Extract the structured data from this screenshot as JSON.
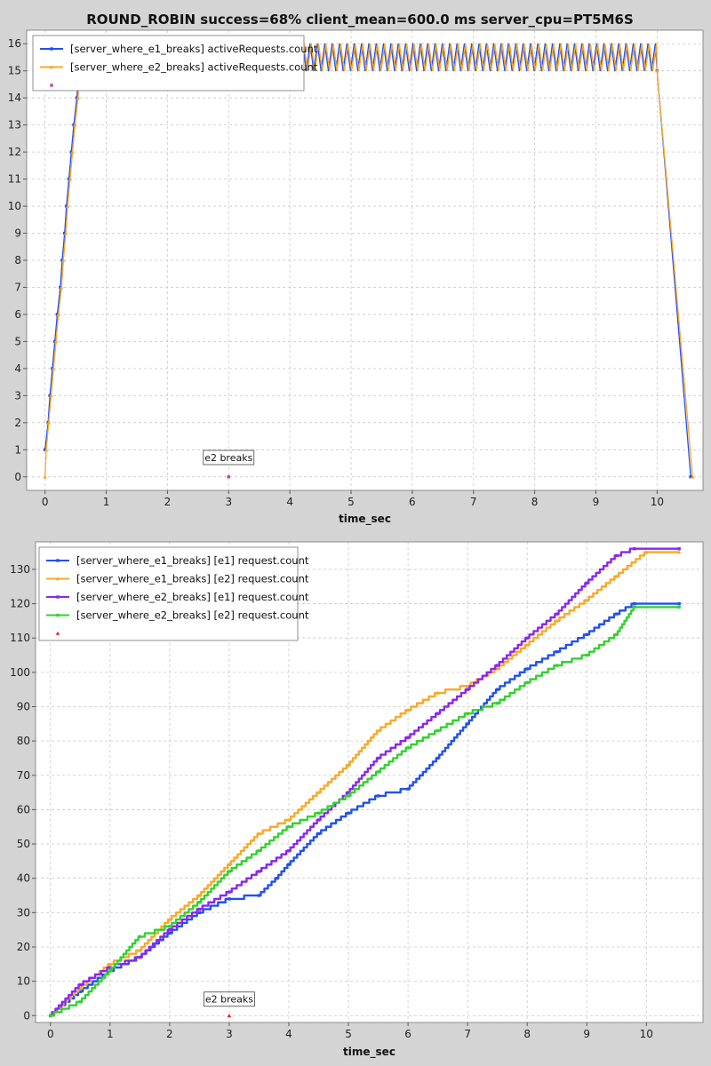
{
  "window": {
    "title": "ROUND_ROBIN success=68% client_mean=600.0 ms server_cpu=PT5M6S"
  },
  "colors": {
    "background": "#d4d4d4",
    "plot_background": "#ffffff",
    "grid": "#c8c8c8",
    "blue": "#2250f0",
    "orange": "#f9a926",
    "purple": "#8a26f0",
    "green": "#33d12f",
    "marker_magenta": "#c040c0",
    "marker_red": "#e02020"
  },
  "chart_data": [
    {
      "type": "line",
      "title": "ROUND_ROBIN success=68% client_mean=600.0 ms server_cpu=PT5M6S",
      "xlabel": "time_sec",
      "ylabel": "",
      "xlim": [
        -0.3,
        10.75
      ],
      "ylim": [
        -0.5,
        16.5
      ],
      "xticks": [
        "0",
        "1",
        "2",
        "3",
        "4",
        "5",
        "6",
        "7",
        "8",
        "9",
        "10"
      ],
      "yticks": [
        "0",
        "1",
        "2",
        "3",
        "4",
        "5",
        "6",
        "7",
        "8",
        "9",
        "10",
        "11",
        "12",
        "13",
        "14",
        "15",
        "16"
      ],
      "grid": true,
      "legend_position": "top-left",
      "series": [
        {
          "name": "[server_where_e1_breaks] activeRequests.count",
          "color": "blue",
          "marker": "square",
          "ramp_up": [
            [
              0,
              1
            ],
            [
              0.05,
              2
            ],
            [
              0.08,
              3
            ],
            [
              0.12,
              4
            ],
            [
              0.16,
              5
            ],
            [
              0.2,
              6
            ],
            [
              0.25,
              7
            ],
            [
              0.28,
              8
            ],
            [
              0.32,
              9
            ],
            [
              0.35,
              10
            ],
            [
              0.39,
              11
            ],
            [
              0.43,
              12
            ],
            [
              0.47,
              13
            ],
            [
              0.52,
              14
            ],
            [
              0.55,
              15
            ]
          ],
          "oscillation": {
            "from": 0.55,
            "to": 10.0,
            "low": 15,
            "high": 16
          },
          "ramp_down": [
            [
              10.0,
              15
            ],
            [
              10.55,
              0
            ]
          ]
        },
        {
          "name": "[server_where_e2_breaks] activeRequests.count",
          "color": "orange",
          "marker": "triangle",
          "ramp_up": [
            [
              0,
              0
            ],
            [
              0.02,
              1
            ],
            [
              0.06,
              2
            ],
            [
              0.1,
              3
            ],
            [
              0.14,
              4
            ],
            [
              0.18,
              5
            ],
            [
              0.22,
              6
            ],
            [
              0.27,
              7
            ],
            [
              0.3,
              8
            ],
            [
              0.34,
              9
            ],
            [
              0.37,
              10
            ],
            [
              0.41,
              11
            ],
            [
              0.45,
              12
            ],
            [
              0.49,
              13
            ],
            [
              0.54,
              14
            ],
            [
              0.57,
              15
            ]
          ],
          "oscillation": {
            "from": 0.57,
            "to": 10.0,
            "low": 15,
            "high": 16
          },
          "ramp_down": [
            [
              10.0,
              15
            ],
            [
              10.58,
              0
            ]
          ]
        }
      ],
      "event_marker": {
        "color": "marker_magenta",
        "x": 3.0,
        "y": 0
      },
      "annotations": [
        {
          "text": "e2 breaks",
          "x": 3.0,
          "y": 0.55
        }
      ]
    },
    {
      "type": "line",
      "title": "",
      "xlabel": "time_sec",
      "ylabel": "",
      "xlim": [
        -0.25,
        10.95
      ],
      "ylim": [
        -2,
        138
      ],
      "xticks": [
        "0",
        "1",
        "2",
        "3",
        "4",
        "5",
        "6",
        "7",
        "8",
        "9",
        "10"
      ],
      "yticks": [
        "0",
        "10",
        "20",
        "30",
        "40",
        "50",
        "60",
        "70",
        "80",
        "90",
        "100",
        "110",
        "120",
        "130"
      ],
      "grid": true,
      "legend_position": "top-left",
      "series": [
        {
          "name": "[server_where_e1_breaks] [e1] request.count",
          "color": "blue",
          "marker": "square",
          "points": [
            [
              0,
              0
            ],
            [
              0.5,
              7
            ],
            [
              1,
              13
            ],
            [
              1.5,
              17
            ],
            [
              2,
              24
            ],
            [
              2.5,
              30
            ],
            [
              3,
              34
            ],
            [
              3.5,
              35
            ],
            [
              3.8,
              40
            ],
            [
              4,
              44
            ],
            [
              4.5,
              53
            ],
            [
              5,
              59
            ],
            [
              5.5,
              64
            ],
            [
              6,
              66
            ],
            [
              6.5,
              75
            ],
            [
              7,
              85
            ],
            [
              7.5,
              95
            ],
            [
              8,
              101
            ],
            [
              8.5,
              106
            ],
            [
              9,
              111
            ],
            [
              9.5,
              117
            ],
            [
              9.8,
              120
            ],
            [
              10.55,
              120
            ]
          ]
        },
        {
          "name": "[server_where_e1_breaks] [e2] request.count",
          "color": "orange",
          "marker": "triangle",
          "points": [
            [
              0,
              0
            ],
            [
              0.5,
              8
            ],
            [
              1,
              15
            ],
            [
              1.5,
              19
            ],
            [
              2,
              28
            ],
            [
              2.5,
              35
            ],
            [
              3,
              44
            ],
            [
              3.5,
              53
            ],
            [
              4,
              57
            ],
            [
              4.5,
              65
            ],
            [
              5,
              73
            ],
            [
              5.5,
              83
            ],
            [
              6,
              89
            ],
            [
              6.5,
              94
            ],
            [
              7,
              96
            ],
            [
              7.5,
              101
            ],
            [
              8,
              108
            ],
            [
              8.5,
              115
            ],
            [
              9,
              121
            ],
            [
              9.5,
              128
            ],
            [
              10,
              135
            ],
            [
              10.55,
              135
            ]
          ]
        },
        {
          "name": "[server_where_e2_breaks] [e1] request.count",
          "color": "purple",
          "marker": "square",
          "points": [
            [
              0,
              0
            ],
            [
              0.5,
              9
            ],
            [
              1,
              14
            ],
            [
              1.5,
              17
            ],
            [
              2,
              25
            ],
            [
              2.5,
              31
            ],
            [
              3,
              36
            ],
            [
              3.5,
              42
            ],
            [
              4,
              48
            ],
            [
              4.5,
              57
            ],
            [
              5,
              65
            ],
            [
              5.5,
              75
            ],
            [
              6,
              81
            ],
            [
              6.5,
              88
            ],
            [
              7,
              95
            ],
            [
              7.5,
              102
            ],
            [
              8,
              110
            ],
            [
              8.5,
              117
            ],
            [
              9,
              126
            ],
            [
              9.5,
              134
            ],
            [
              9.8,
              136
            ],
            [
              10.55,
              136
            ]
          ]
        },
        {
          "name": "[server_where_e2_breaks] [e2] request.count",
          "color": "green",
          "marker": "square",
          "points": [
            [
              0,
              0
            ],
            [
              0.5,
              4
            ],
            [
              1,
              13
            ],
            [
              1.5,
              23
            ],
            [
              2,
              26
            ],
            [
              2.5,
              33
            ],
            [
              3,
              42
            ],
            [
              3.5,
              48
            ],
            [
              4,
              55
            ],
            [
              4.5,
              59
            ],
            [
              5,
              64
            ],
            [
              5.5,
              71
            ],
            [
              6,
              78
            ],
            [
              6.5,
              83
            ],
            [
              7,
              88
            ],
            [
              7.5,
              91
            ],
            [
              8,
              97
            ],
            [
              8.5,
              102
            ],
            [
              9,
              105
            ],
            [
              9.5,
              111
            ],
            [
              9.8,
              119
            ],
            [
              10.55,
              119
            ]
          ]
        }
      ],
      "event_marker": {
        "color": "marker_red",
        "x": 3.0,
        "y": 0
      },
      "annotations": [
        {
          "text": "e2 breaks",
          "x": 3.0,
          "y": 3.5
        }
      ]
    }
  ]
}
